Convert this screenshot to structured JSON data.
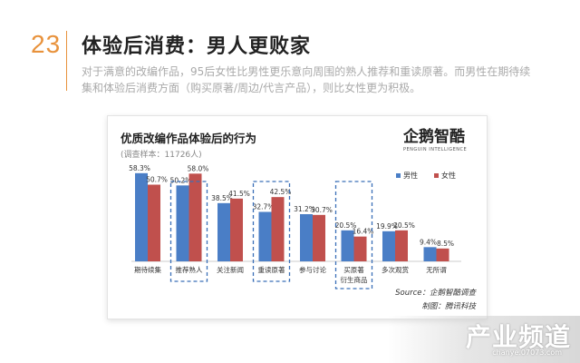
{
  "page": {
    "number": "23",
    "title": "体验后消费：男人更败家",
    "intro": "对于满意的改编作品，95后女性比男性更乐意向周围的熟人推荐和重读原著。而男性在期待续集和体验后消费方面（购买原著/周边/代言产品），则比女性更为积极。"
  },
  "logo": {
    "text": "企鹅智酷",
    "subtext": "PENGUIN INTELLIGENCE"
  },
  "chart_data": {
    "type": "bar",
    "title": "优质改编作品体验后的行为",
    "subtitle": "(调查样本：11726人)",
    "categories": [
      "期待续集",
      "推荐熟人",
      "关注新闻",
      "重读原著",
      "参与讨论",
      "买原著|衍生商品",
      "多次观赏",
      "无所谓"
    ],
    "series": [
      {
        "name": "男性",
        "color": "#4a7ec6",
        "values": [
          58.3,
          50.2,
          38.5,
          32.7,
          31.2,
          20.5,
          19.9,
          9.4
        ]
      },
      {
        "name": "女性",
        "color": "#c0504d",
        "values": [
          50.7,
          58.0,
          41.5,
          42.5,
          30.7,
          16.4,
          20.5,
          8.5
        ]
      }
    ],
    "value_labels": [
      [
        "58.3%",
        "50.2%",
        "38.5%",
        "32.7%",
        "31.2%",
        "20.5%",
        "19.9%",
        "9.4%"
      ],
      [
        "50.7%",
        "58.0%",
        "41.5%",
        "42.5%",
        "30.7%",
        "16.4%",
        "20.5%",
        "8.5%"
      ]
    ],
    "highlighted_categories": [
      "推荐熟人",
      "重读原著",
      "买原著|衍生商品"
    ],
    "legend_position": "top-right",
    "grid": false
  },
  "source": {
    "line1": "Source：企鹅智酷调查",
    "line2": "制图：腾讯科技"
  },
  "watermark": {
    "text": "产业频道",
    "url": "chanye.07073.com"
  }
}
